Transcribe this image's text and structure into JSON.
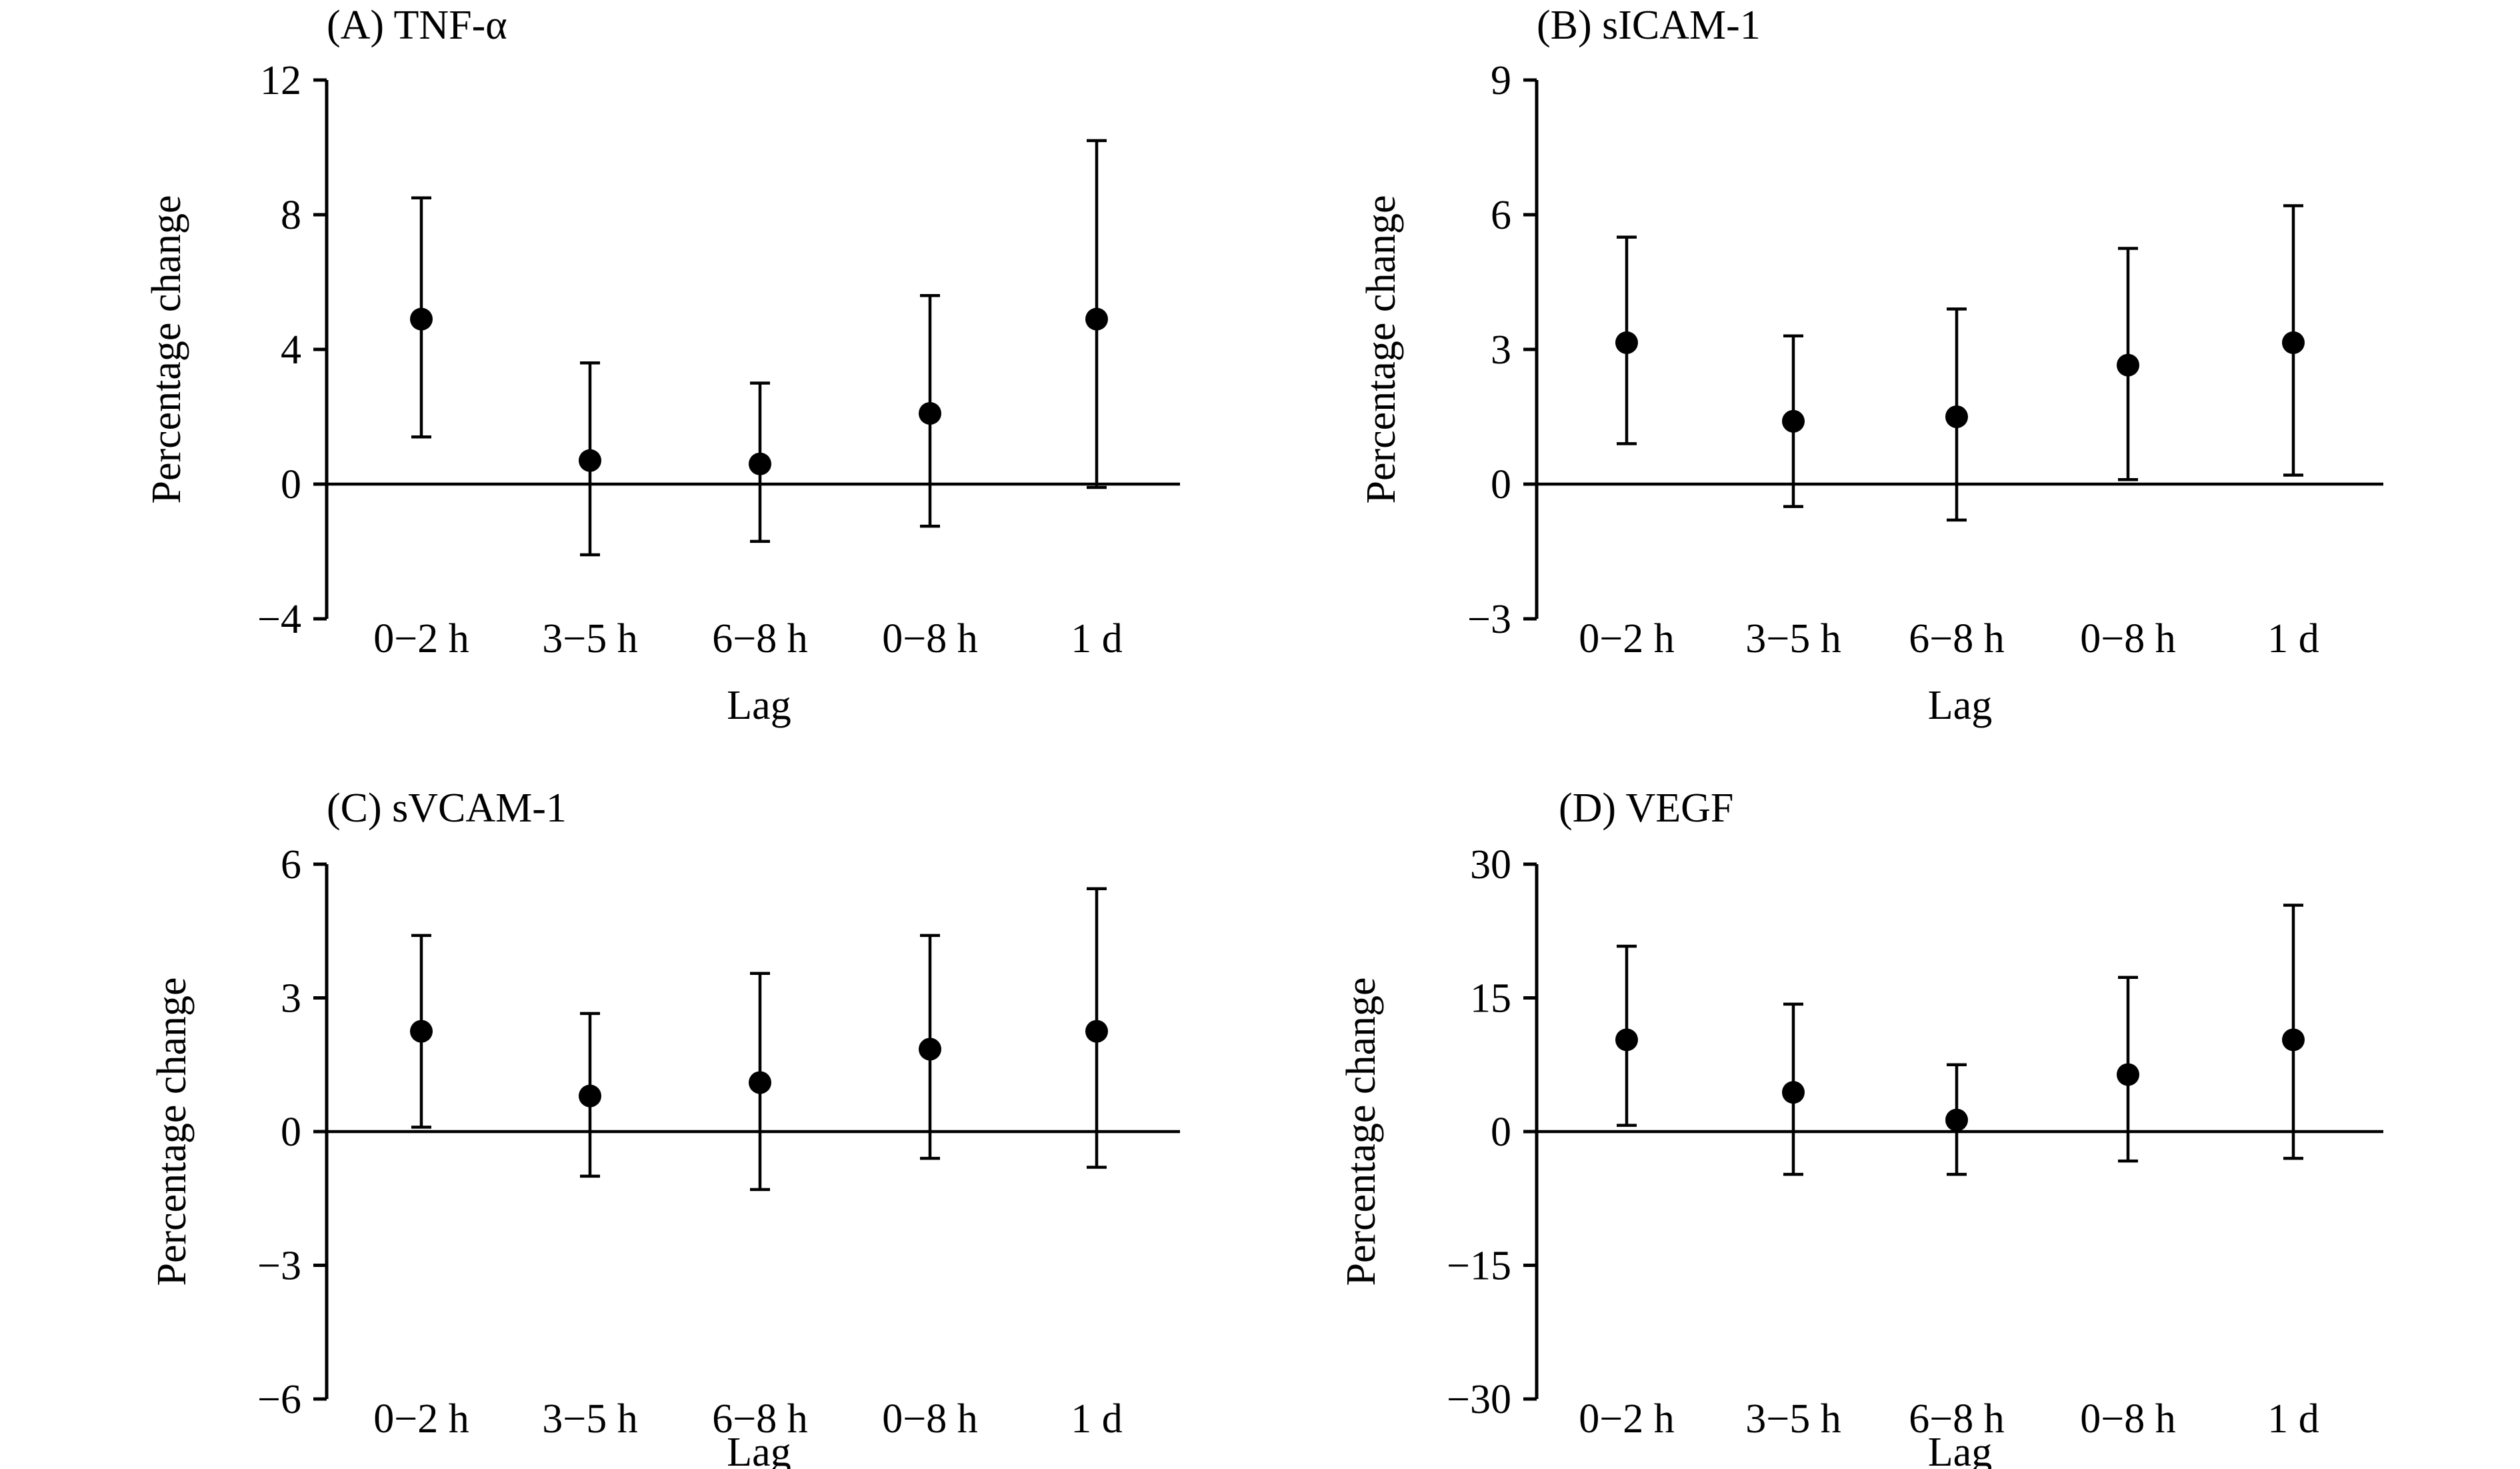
{
  "chart_data": [
    {
      "type": "scatter",
      "title": "(A) TNF-α",
      "xlabel": "Lag",
      "ylabel": "Percentage change",
      "categories": [
        "0−2 h",
        "3−5 h",
        "6−8 h",
        "0−8 h",
        "1 d"
      ],
      "yticks": [
        12,
        8,
        4,
        0,
        -4
      ],
      "ytick_labels": [
        "12",
        "8",
        "4",
        "0",
        "−4"
      ],
      "ylim": [
        -4,
        12
      ],
      "series": [
        {
          "name": "Percentage change",
          "values": [
            4.9,
            0.7,
            0.6,
            2.1,
            4.9
          ],
          "lower": [
            1.4,
            -2.1,
            -1.7,
            -1.25,
            -0.1
          ],
          "upper": [
            8.5,
            3.6,
            3.0,
            5.6,
            10.2
          ]
        }
      ]
    },
    {
      "type": "scatter",
      "title": "(B) sICAM-1",
      "xlabel": "Lag",
      "ylabel": "Percentage change",
      "categories": [
        "0−2 h",
        "3−5 h",
        "6−8 h",
        "0−8 h",
        "1 d"
      ],
      "yticks": [
        9,
        6,
        3,
        0,
        -3
      ],
      "ytick_labels": [
        "9",
        "6",
        "3",
        "0",
        "−3"
      ],
      "ylim": [
        -3,
        9
      ],
      "series": [
        {
          "name": "Percentage change",
          "values": [
            3.15,
            1.4,
            1.5,
            2.65,
            3.15
          ],
          "lower": [
            0.9,
            -0.5,
            -0.8,
            0.1,
            0.2
          ],
          "upper": [
            5.5,
            3.3,
            3.9,
            5.25,
            6.2
          ]
        }
      ]
    },
    {
      "type": "scatter",
      "title": "(C) sVCAM-1",
      "xlabel": "Lag",
      "ylabel": "Percentage change",
      "categories": [
        "0−2 h",
        "3−5 h",
        "6−8 h",
        "0−8 h",
        "1 d"
      ],
      "yticks": [
        6,
        3,
        0,
        -3,
        -6
      ],
      "ytick_labels": [
        "6",
        "3",
        "0",
        "−3",
        "−6"
      ],
      "ylim": [
        -6,
        6
      ],
      "series": [
        {
          "name": "Percentage change",
          "values": [
            2.25,
            0.8,
            1.1,
            1.85,
            2.25
          ],
          "lower": [
            0.1,
            -1.0,
            -1.3,
            -0.6,
            -0.8
          ],
          "upper": [
            4.4,
            2.65,
            3.55,
            4.4,
            5.45
          ]
        }
      ]
    },
    {
      "type": "scatter",
      "title": "(D) VEGF",
      "xlabel": "Lag",
      "ylabel": "Percentage change",
      "categories": [
        "0−2 h",
        "3−5 h",
        "6−8 h",
        "0−8 h",
        "1 d"
      ],
      "yticks": [
        30,
        15,
        0,
        -15,
        -30
      ],
      "ytick_labels": [
        "30",
        "15",
        "0",
        "−15",
        "−30"
      ],
      "ylim": [
        -30,
        30
      ],
      "series": [
        {
          "name": "Percentage change",
          "values": [
            10.3,
            4.4,
            1.3,
            6.4,
            10.3
          ],
          "lower": [
            0.7,
            -4.8,
            -4.8,
            -3.3,
            -3.0
          ],
          "upper": [
            20.8,
            14.3,
            7.5,
            17.3,
            25.4
          ]
        }
      ]
    }
  ]
}
